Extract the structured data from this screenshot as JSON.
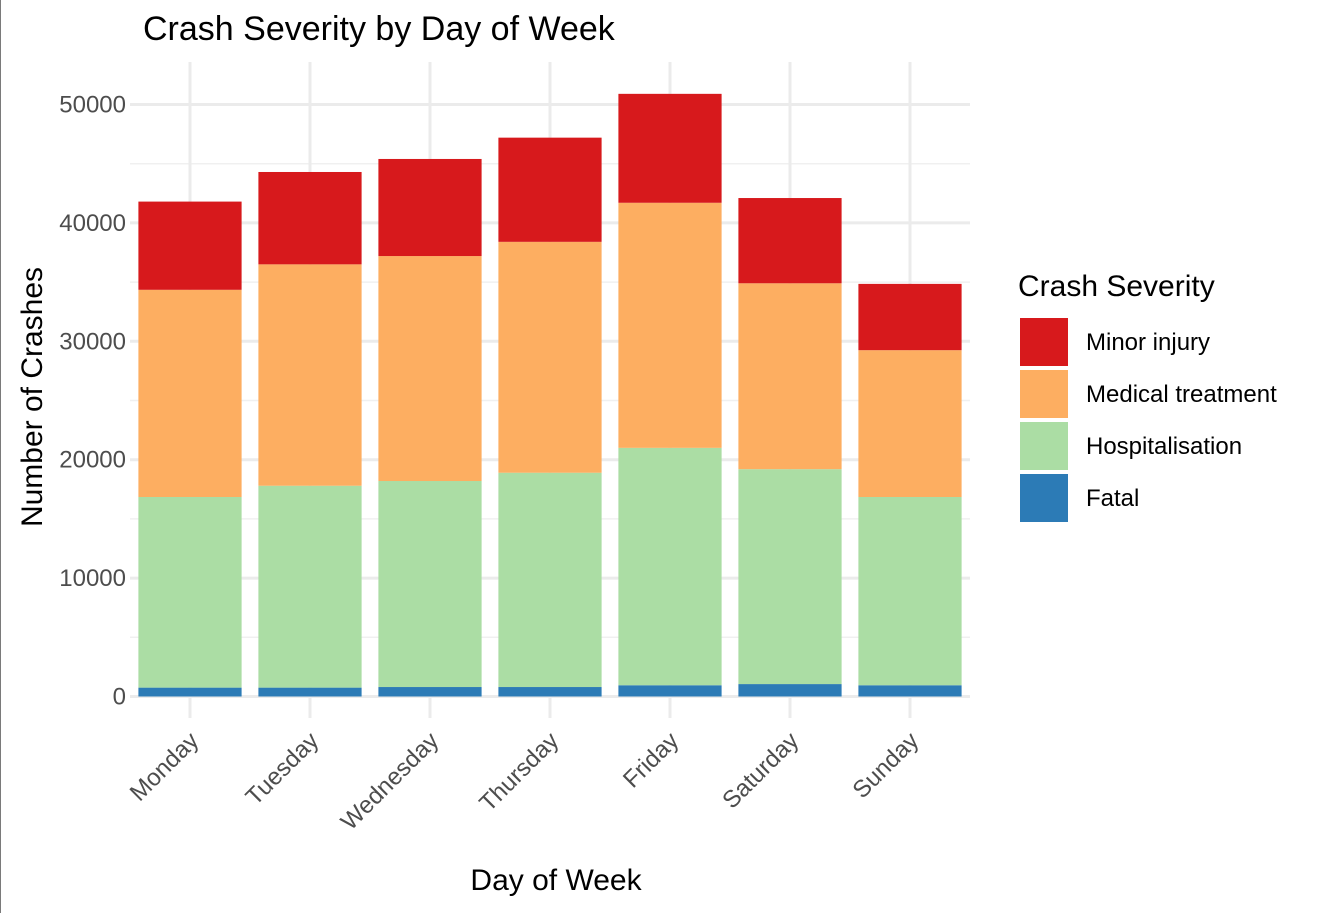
{
  "chart_data": {
    "type": "bar",
    "stacked": true,
    "title": "Crash Severity by Day of Week",
    "xlabel": "Day of Week",
    "ylabel": "Number of Crashes",
    "ylim": [
      0,
      53500
    ],
    "yticks": [
      0,
      10000,
      20000,
      30000,
      40000,
      50000
    ],
    "ytick_labels": [
      "0",
      "10000",
      "20000",
      "30000",
      "40000",
      "50000"
    ],
    "grid": true,
    "categories": [
      "Monday",
      "Tuesday",
      "Wednesday",
      "Thursday",
      "Friday",
      "Saturday",
      "Sunday"
    ],
    "legend": {
      "title": "Crash Severity",
      "placement": "right"
    },
    "series": [
      {
        "name": "Fatal",
        "color": "#2c7bb6",
        "values": [
          750,
          750,
          800,
          800,
          950,
          1050,
          950
        ]
      },
      {
        "name": "Hospitalisation",
        "color": "#abdda4",
        "values": [
          16100,
          17050,
          17400,
          18100,
          20050,
          18150,
          15900
        ]
      },
      {
        "name": "Medical treatment",
        "color": "#fdae61",
        "values": [
          17500,
          18700,
          19000,
          19500,
          20700,
          15700,
          12400
        ]
      },
      {
        "name": "Minor injury",
        "color": "#d7191c",
        "values": [
          7450,
          7800,
          8200,
          8800,
          9200,
          7200,
          5600
        ]
      }
    ],
    "legend_order": [
      "Minor injury",
      "Medical treatment",
      "Hospitalisation",
      "Fatal"
    ]
  }
}
